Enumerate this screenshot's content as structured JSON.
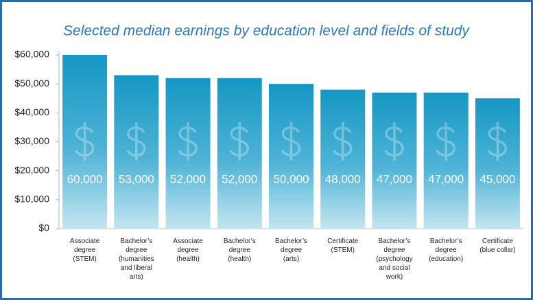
{
  "chart_data": {
    "type": "bar",
    "title": "Selected median earnings by education level and fields of study",
    "categories": [
      "Associate\ndegree\n(STEM)",
      "Bachelor’s\ndegree\n(humanities\nand liberal\narts)",
      "Associate\ndegree\n(health)",
      "Bachelor’s\ndegree\n(health)",
      "Bachelor’s\ndegree\n(arts)",
      "Certificate\n(STEM)",
      "Bachelor’s\ndegree\n(psychology\nand social\nwork)",
      "Bachelor’s\ndegree\n(education)",
      "Certificate\n(blue collar)"
    ],
    "values": [
      60000,
      53000,
      52000,
      52000,
      50000,
      48000,
      47000,
      47000,
      45000
    ],
    "value_labels": [
      "60,000",
      "53,000",
      "52,000",
      "52,000",
      "50,000",
      "48,000",
      "47,000",
      "47,000",
      "45,000"
    ],
    "color": "#1a9bc4",
    "ylim": [
      0,
      60000
    ],
    "yticks": [
      {
        "value": 0,
        "label": "$0"
      },
      {
        "value": 10000,
        "label": "$10,000"
      },
      {
        "value": 20000,
        "label": "$20,000"
      },
      {
        "value": 30000,
        "label": "$30,000"
      },
      {
        "value": 40000,
        "label": "$40,000"
      },
      {
        "value": 50000,
        "label": "$50,000"
      },
      {
        "value": 60000,
        "label": "$60,000"
      }
    ],
    "grid": false
  }
}
